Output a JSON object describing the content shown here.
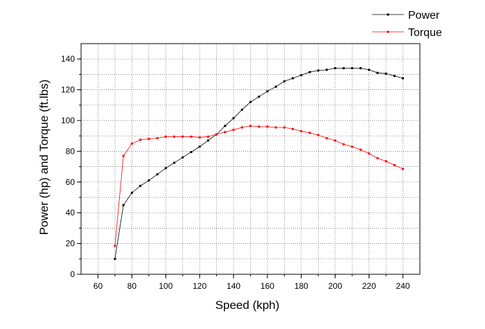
{
  "chart_data": {
    "type": "line",
    "xlabel": "Speed (kph)",
    "ylabel": "Power (hp) and Torque (ft.lbs)",
    "xlim": [
      50,
      250
    ],
    "ylim": [
      0,
      150
    ],
    "x_ticks": [
      60,
      80,
      100,
      120,
      140,
      160,
      180,
      200,
      220,
      240
    ],
    "y_ticks": [
      0,
      20,
      40,
      60,
      80,
      100,
      120,
      140
    ],
    "grid": true,
    "legend_position": "top-right",
    "series": [
      {
        "name": "Power",
        "color": "#000000",
        "x": [
          70,
          75,
          80,
          85,
          90,
          95,
          100,
          105,
          110,
          115,
          120,
          125,
          130,
          135,
          140,
          145,
          150,
          155,
          160,
          165,
          170,
          175,
          180,
          185,
          190,
          195,
          200,
          205,
          210,
          215,
          220,
          225,
          230,
          235,
          240
        ],
        "y": [
          10,
          45,
          53,
          57.5,
          61,
          65,
          69,
          72.5,
          76,
          79.5,
          83,
          87,
          91,
          96.5,
          101.5,
          107,
          112,
          115.5,
          119,
          122,
          125.5,
          127.5,
          129.5,
          131.5,
          132.5,
          133,
          134,
          134,
          134,
          134,
          133,
          131,
          130.5,
          129,
          127.5
        ]
      },
      {
        "name": "Torque",
        "color": "#ff0000",
        "x": [
          70,
          75,
          80,
          85,
          90,
          95,
          100,
          105,
          110,
          115,
          120,
          125,
          130,
          135,
          140,
          145,
          150,
          155,
          160,
          165,
          170,
          175,
          180,
          185,
          190,
          195,
          200,
          205,
          210,
          215,
          220,
          225,
          230,
          235,
          240
        ],
        "y": [
          18.5,
          77,
          85,
          87.5,
          88,
          88.5,
          89.5,
          89.5,
          89.5,
          89.5,
          89,
          89.5,
          91,
          92.5,
          94,
          95.5,
          96.5,
          96,
          96,
          95.5,
          95.5,
          94.5,
          93,
          92,
          90.5,
          88.5,
          87,
          84.5,
          83,
          81,
          78.5,
          75.5,
          73.5,
          71,
          68.5
        ]
      }
    ]
  }
}
